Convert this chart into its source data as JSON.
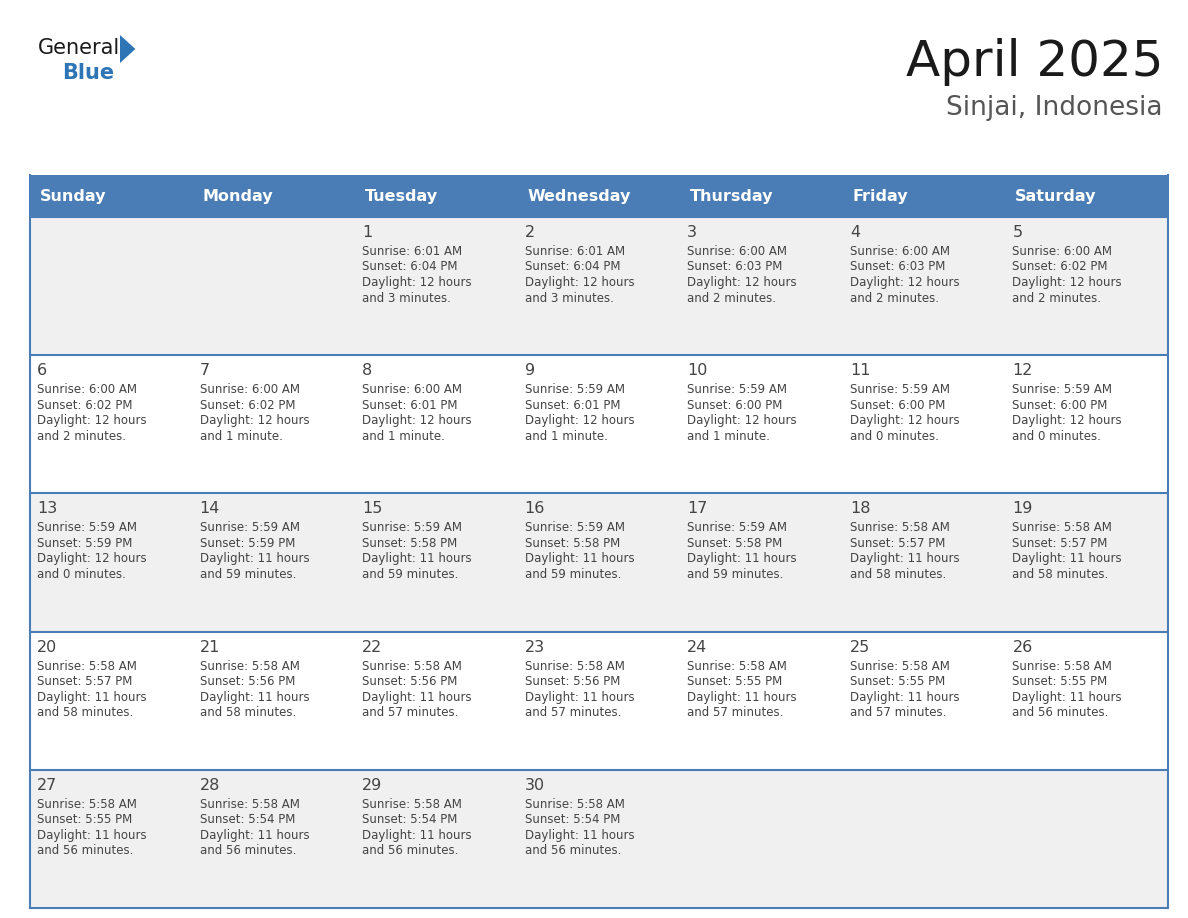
{
  "title": "April 2025",
  "subtitle": "Sinjai, Indonesia",
  "header_color": "#4a7db5",
  "header_text_color": "#ffffff",
  "cell_bg_white": "#ffffff",
  "cell_bg_gray": "#f0f0f0",
  "border_color": "#4a7db5",
  "text_color": "#444444",
  "days_of_week": [
    "Sunday",
    "Monday",
    "Tuesday",
    "Wednesday",
    "Thursday",
    "Friday",
    "Saturday"
  ],
  "weeks": [
    [
      {
        "day": "",
        "sunrise": "",
        "sunset": "",
        "daylight": ""
      },
      {
        "day": "",
        "sunrise": "",
        "sunset": "",
        "daylight": ""
      },
      {
        "day": "1",
        "sunrise": "6:01 AM",
        "sunset": "6:04 PM",
        "daylight": "12 hours\nand 3 minutes."
      },
      {
        "day": "2",
        "sunrise": "6:01 AM",
        "sunset": "6:04 PM",
        "daylight": "12 hours\nand 3 minutes."
      },
      {
        "day": "3",
        "sunrise": "6:00 AM",
        "sunset": "6:03 PM",
        "daylight": "12 hours\nand 2 minutes."
      },
      {
        "day": "4",
        "sunrise": "6:00 AM",
        "sunset": "6:03 PM",
        "daylight": "12 hours\nand 2 minutes."
      },
      {
        "day": "5",
        "sunrise": "6:00 AM",
        "sunset": "6:02 PM",
        "daylight": "12 hours\nand 2 minutes."
      }
    ],
    [
      {
        "day": "6",
        "sunrise": "6:00 AM",
        "sunset": "6:02 PM",
        "daylight": "12 hours\nand 2 minutes."
      },
      {
        "day": "7",
        "sunrise": "6:00 AM",
        "sunset": "6:02 PM",
        "daylight": "12 hours\nand 1 minute."
      },
      {
        "day": "8",
        "sunrise": "6:00 AM",
        "sunset": "6:01 PM",
        "daylight": "12 hours\nand 1 minute."
      },
      {
        "day": "9",
        "sunrise": "5:59 AM",
        "sunset": "6:01 PM",
        "daylight": "12 hours\nand 1 minute."
      },
      {
        "day": "10",
        "sunrise": "5:59 AM",
        "sunset": "6:00 PM",
        "daylight": "12 hours\nand 1 minute."
      },
      {
        "day": "11",
        "sunrise": "5:59 AM",
        "sunset": "6:00 PM",
        "daylight": "12 hours\nand 0 minutes."
      },
      {
        "day": "12",
        "sunrise": "5:59 AM",
        "sunset": "6:00 PM",
        "daylight": "12 hours\nand 0 minutes."
      }
    ],
    [
      {
        "day": "13",
        "sunrise": "5:59 AM",
        "sunset": "5:59 PM",
        "daylight": "12 hours\nand 0 minutes."
      },
      {
        "day": "14",
        "sunrise": "5:59 AM",
        "sunset": "5:59 PM",
        "daylight": "11 hours\nand 59 minutes."
      },
      {
        "day": "15",
        "sunrise": "5:59 AM",
        "sunset": "5:58 PM",
        "daylight": "11 hours\nand 59 minutes."
      },
      {
        "day": "16",
        "sunrise": "5:59 AM",
        "sunset": "5:58 PM",
        "daylight": "11 hours\nand 59 minutes."
      },
      {
        "day": "17",
        "sunrise": "5:59 AM",
        "sunset": "5:58 PM",
        "daylight": "11 hours\nand 59 minutes."
      },
      {
        "day": "18",
        "sunrise": "5:58 AM",
        "sunset": "5:57 PM",
        "daylight": "11 hours\nand 58 minutes."
      },
      {
        "day": "19",
        "sunrise": "5:58 AM",
        "sunset": "5:57 PM",
        "daylight": "11 hours\nand 58 minutes."
      }
    ],
    [
      {
        "day": "20",
        "sunrise": "5:58 AM",
        "sunset": "5:57 PM",
        "daylight": "11 hours\nand 58 minutes."
      },
      {
        "day": "21",
        "sunrise": "5:58 AM",
        "sunset": "5:56 PM",
        "daylight": "11 hours\nand 58 minutes."
      },
      {
        "day": "22",
        "sunrise": "5:58 AM",
        "sunset": "5:56 PM",
        "daylight": "11 hours\nand 57 minutes."
      },
      {
        "day": "23",
        "sunrise": "5:58 AM",
        "sunset": "5:56 PM",
        "daylight": "11 hours\nand 57 minutes."
      },
      {
        "day": "24",
        "sunrise": "5:58 AM",
        "sunset": "5:55 PM",
        "daylight": "11 hours\nand 57 minutes."
      },
      {
        "day": "25",
        "sunrise": "5:58 AM",
        "sunset": "5:55 PM",
        "daylight": "11 hours\nand 57 minutes."
      },
      {
        "day": "26",
        "sunrise": "5:58 AM",
        "sunset": "5:55 PM",
        "daylight": "11 hours\nand 56 minutes."
      }
    ],
    [
      {
        "day": "27",
        "sunrise": "5:58 AM",
        "sunset": "5:55 PM",
        "daylight": "11 hours\nand 56 minutes."
      },
      {
        "day": "28",
        "sunrise": "5:58 AM",
        "sunset": "5:54 PM",
        "daylight": "11 hours\nand 56 minutes."
      },
      {
        "day": "29",
        "sunrise": "5:58 AM",
        "sunset": "5:54 PM",
        "daylight": "11 hours\nand 56 minutes."
      },
      {
        "day": "30",
        "sunrise": "5:58 AM",
        "sunset": "5:54 PM",
        "daylight": "11 hours\nand 56 minutes."
      },
      {
        "day": "",
        "sunrise": "",
        "sunset": "",
        "daylight": ""
      },
      {
        "day": "",
        "sunrise": "",
        "sunset": "",
        "daylight": ""
      },
      {
        "day": "",
        "sunrise": "",
        "sunset": "",
        "daylight": ""
      }
    ]
  ]
}
